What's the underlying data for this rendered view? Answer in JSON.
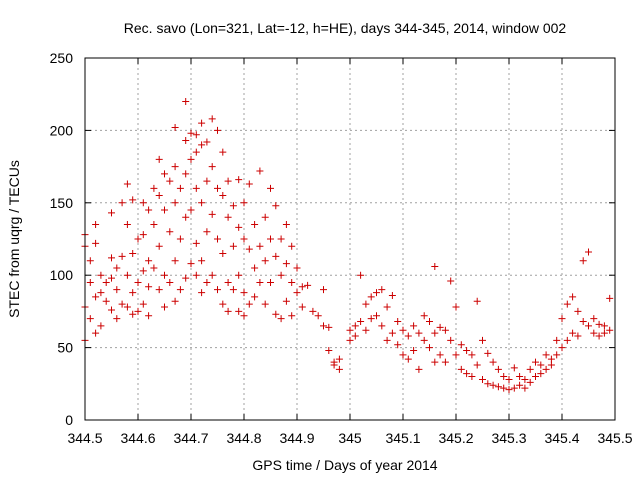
{
  "chart_data": {
    "type": "scatter",
    "title": "Rec. savo (Lon=321, Lat=-12, h=HE), days 344-345, 2014, window 002",
    "xlabel": "GPS time / Days of year 2014",
    "ylabel": "STEC from uqrg / TECUs",
    "xlim": [
      344.5,
      345.5
    ],
    "ylim": [
      0,
      250
    ],
    "xticks": [
      344.5,
      344.6,
      344.7,
      344.8,
      344.9,
      345,
      345.1,
      345.2,
      345.3,
      345.4,
      345.5
    ],
    "xtick_labels": [
      "344.5",
      "344.6",
      "344.7",
      "344.8",
      "344.9",
      "345",
      "345.1",
      "345.2",
      "345.3",
      "345.4",
      "345.5"
    ],
    "yticks": [
      0,
      50,
      100,
      150,
      200,
      250
    ],
    "ytick_labels": [
      "0",
      "50",
      "100",
      "150",
      "200",
      "250"
    ],
    "grid": true,
    "marker": "+",
    "color": "#cc0000",
    "series": [
      {
        "name": "STEC",
        "points": [
          [
            344.5,
            128
          ],
          [
            344.5,
            120
          ],
          [
            344.5,
            78
          ],
          [
            344.5,
            55
          ],
          [
            344.51,
            110
          ],
          [
            344.51,
            95
          ],
          [
            344.51,
            70
          ],
          [
            344.52,
            135
          ],
          [
            344.52,
            122
          ],
          [
            344.52,
            85
          ],
          [
            344.52,
            60
          ],
          [
            344.53,
            100
          ],
          [
            344.53,
            88
          ],
          [
            344.53,
            65
          ],
          [
            344.54,
            95
          ],
          [
            344.54,
            82
          ],
          [
            344.55,
            143
          ],
          [
            344.55,
            112
          ],
          [
            344.55,
            98
          ],
          [
            344.55,
            76
          ],
          [
            344.56,
            105
          ],
          [
            344.56,
            90
          ],
          [
            344.56,
            70
          ],
          [
            344.57,
            150
          ],
          [
            344.57,
            113
          ],
          [
            344.57,
            80
          ],
          [
            344.58,
            163
          ],
          [
            344.58,
            135
          ],
          [
            344.58,
            100
          ],
          [
            344.58,
            78
          ],
          [
            344.59,
            152
          ],
          [
            344.59,
            115
          ],
          [
            344.59,
            88
          ],
          [
            344.59,
            73
          ],
          [
            344.6,
            125
          ],
          [
            344.6,
            95
          ],
          [
            344.6,
            75
          ],
          [
            344.61,
            150
          ],
          [
            344.61,
            128
          ],
          [
            344.61,
            103
          ],
          [
            344.61,
            80
          ],
          [
            344.62,
            145
          ],
          [
            344.62,
            110
          ],
          [
            344.62,
            92
          ],
          [
            344.62,
            72
          ],
          [
            344.63,
            160
          ],
          [
            344.63,
            135
          ],
          [
            344.63,
            105
          ],
          [
            344.64,
            180
          ],
          [
            344.64,
            155
          ],
          [
            344.64,
            120
          ],
          [
            344.64,
            90
          ],
          [
            344.65,
            170
          ],
          [
            344.65,
            145
          ],
          [
            344.65,
            100
          ],
          [
            344.65,
            78
          ],
          [
            344.66,
            165
          ],
          [
            344.66,
            130
          ],
          [
            344.66,
            95
          ],
          [
            344.67,
            202
          ],
          [
            344.67,
            175
          ],
          [
            344.67,
            150
          ],
          [
            344.67,
            110
          ],
          [
            344.67,
            82
          ],
          [
            344.68,
            160
          ],
          [
            344.68,
            125
          ],
          [
            344.68,
            90
          ],
          [
            344.69,
            220
          ],
          [
            344.69,
            193
          ],
          [
            344.69,
            170
          ],
          [
            344.69,
            140
          ],
          [
            344.69,
            98
          ],
          [
            344.7,
            198
          ],
          [
            344.7,
            180
          ],
          [
            344.7,
            145
          ],
          [
            344.7,
            108
          ],
          [
            344.71,
            197
          ],
          [
            344.71,
            185
          ],
          [
            344.71,
            160
          ],
          [
            344.71,
            122
          ],
          [
            344.71,
            100
          ],
          [
            344.72,
            205
          ],
          [
            344.72,
            190
          ],
          [
            344.72,
            150
          ],
          [
            344.72,
            110
          ],
          [
            344.72,
            88
          ],
          [
            344.73,
            192
          ],
          [
            344.73,
            165
          ],
          [
            344.73,
            130
          ],
          [
            344.73,
            95
          ],
          [
            344.74,
            208
          ],
          [
            344.74,
            175
          ],
          [
            344.74,
            142
          ],
          [
            344.74,
            100
          ],
          [
            344.75,
            200
          ],
          [
            344.75,
            160
          ],
          [
            344.75,
            125
          ],
          [
            344.75,
            90
          ],
          [
            344.76,
            185
          ],
          [
            344.76,
            155
          ],
          [
            344.76,
            115
          ],
          [
            344.76,
            80
          ],
          [
            344.77,
            165
          ],
          [
            344.77,
            140
          ],
          [
            344.77,
            95
          ],
          [
            344.77,
            75
          ],
          [
            344.78,
            148
          ],
          [
            344.78,
            120
          ],
          [
            344.78,
            90
          ],
          [
            344.79,
            166
          ],
          [
            344.79,
            133
          ],
          [
            344.79,
            100
          ],
          [
            344.79,
            75
          ],
          [
            344.8,
            150
          ],
          [
            344.8,
            125
          ],
          [
            344.8,
            88
          ],
          [
            344.8,
            72
          ],
          [
            344.81,
            163
          ],
          [
            344.81,
            118
          ],
          [
            344.81,
            80
          ],
          [
            344.82,
            135
          ],
          [
            344.82,
            105
          ],
          [
            344.82,
            85
          ],
          [
            344.83,
            172
          ],
          [
            344.83,
            120
          ],
          [
            344.83,
            95
          ],
          [
            344.84,
            140
          ],
          [
            344.84,
            110
          ],
          [
            344.84,
            80
          ],
          [
            344.85,
            160
          ],
          [
            344.85,
            125
          ],
          [
            344.85,
            95
          ],
          [
            344.86,
            148
          ],
          [
            344.86,
            113
          ],
          [
            344.86,
            73
          ],
          [
            344.87,
            125
          ],
          [
            344.87,
            100
          ],
          [
            344.87,
            70
          ],
          [
            344.88,
            135
          ],
          [
            344.88,
            108
          ],
          [
            344.88,
            82
          ],
          [
            344.89,
            120
          ],
          [
            344.89,
            95
          ],
          [
            344.89,
            72
          ],
          [
            344.9,
            105
          ],
          [
            344.9,
            88
          ],
          [
            344.91,
            92
          ],
          [
            344.91,
            78
          ],
          [
            344.92,
            93
          ],
          [
            344.93,
            75
          ],
          [
            344.94,
            72
          ],
          [
            344.95,
            90
          ],
          [
            344.95,
            65
          ],
          [
            344.96,
            64
          ],
          [
            344.96,
            48
          ],
          [
            344.97,
            40
          ],
          [
            344.97,
            38
          ],
          [
            344.98,
            42
          ],
          [
            344.98,
            35
          ],
          [
            345.0,
            62
          ],
          [
            345.0,
            55
          ],
          [
            345.01,
            65
          ],
          [
            345.01,
            58
          ],
          [
            345.02,
            100
          ],
          [
            345.02,
            68
          ],
          [
            345.03,
            80
          ],
          [
            345.03,
            62
          ],
          [
            345.04,
            85
          ],
          [
            345.04,
            70
          ],
          [
            345.05,
            88
          ],
          [
            345.05,
            72
          ],
          [
            345.06,
            90
          ],
          [
            345.06,
            65
          ],
          [
            345.07,
            78
          ],
          [
            345.07,
            55
          ],
          [
            345.08,
            86
          ],
          [
            345.08,
            60
          ],
          [
            345.09,
            68
          ],
          [
            345.09,
            52
          ],
          [
            345.1,
            62
          ],
          [
            345.1,
            45
          ],
          [
            345.11,
            58
          ],
          [
            345.11,
            42
          ],
          [
            345.12,
            65
          ],
          [
            345.12,
            48
          ],
          [
            345.13,
            60
          ],
          [
            345.13,
            35
          ],
          [
            345.14,
            72
          ],
          [
            345.14,
            55
          ],
          [
            345.15,
            68
          ],
          [
            345.15,
            50
          ],
          [
            345.16,
            106
          ],
          [
            345.16,
            60
          ],
          [
            345.16,
            40
          ],
          [
            345.17,
            64
          ],
          [
            345.17,
            45
          ],
          [
            345.18,
            62
          ],
          [
            345.18,
            40
          ],
          [
            345.19,
            96
          ],
          [
            345.19,
            55
          ],
          [
            345.2,
            78
          ],
          [
            345.2,
            45
          ],
          [
            345.21,
            52
          ],
          [
            345.21,
            35
          ],
          [
            345.22,
            48
          ],
          [
            345.22,
            32
          ],
          [
            345.23,
            45
          ],
          [
            345.23,
            30
          ],
          [
            345.24,
            82
          ],
          [
            345.24,
            38
          ],
          [
            345.25,
            55
          ],
          [
            345.25,
            28
          ],
          [
            345.26,
            46
          ],
          [
            345.26,
            25
          ],
          [
            345.27,
            40
          ],
          [
            345.27,
            24
          ],
          [
            345.28,
            35
          ],
          [
            345.28,
            23
          ],
          [
            345.29,
            30
          ],
          [
            345.29,
            22
          ],
          [
            345.3,
            28
          ],
          [
            345.3,
            21
          ],
          [
            345.31,
            36
          ],
          [
            345.31,
            22
          ],
          [
            345.32,
            30
          ],
          [
            345.32,
            24
          ],
          [
            345.33,
            28
          ],
          [
            345.33,
            22
          ],
          [
            345.34,
            35
          ],
          [
            345.34,
            26
          ],
          [
            345.35,
            40
          ],
          [
            345.35,
            30
          ],
          [
            345.36,
            38
          ],
          [
            345.36,
            32
          ],
          [
            345.37,
            45
          ],
          [
            345.37,
            35
          ],
          [
            345.38,
            42
          ],
          [
            345.38,
            38
          ],
          [
            345.39,
            55
          ],
          [
            345.39,
            45
          ],
          [
            345.4,
            70
          ],
          [
            345.4,
            50
          ],
          [
            345.41,
            80
          ],
          [
            345.41,
            55
          ],
          [
            345.42,
            85
          ],
          [
            345.42,
            60
          ],
          [
            345.43,
            75
          ],
          [
            345.43,
            58
          ],
          [
            345.44,
            110
          ],
          [
            345.44,
            68
          ],
          [
            345.45,
            116
          ],
          [
            345.45,
            65
          ],
          [
            345.46,
            70
          ],
          [
            345.46,
            60
          ],
          [
            345.47,
            66
          ],
          [
            345.47,
            58
          ],
          [
            345.48,
            65
          ],
          [
            345.48,
            60
          ],
          [
            345.49,
            84
          ],
          [
            345.49,
            62
          ]
        ]
      }
    ]
  }
}
